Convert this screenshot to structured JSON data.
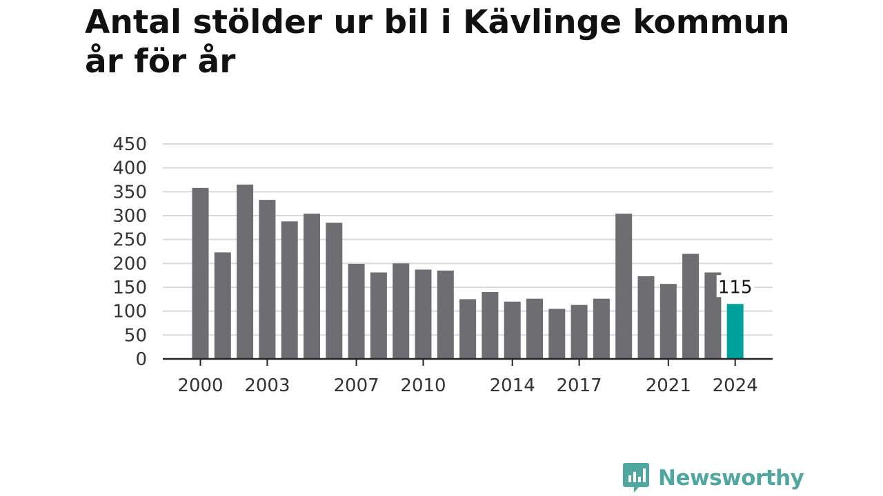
{
  "title": "Antal stölder ur bil i Kävlinge kommun år för år",
  "brand": {
    "name": "Newsworthy",
    "color": "#4fa7a0"
  },
  "colors": {
    "bar": "#6e6d72",
    "highlight": "#00a19a",
    "grid": "#d9d9d9",
    "axis": "#222222"
  },
  "chart_data": {
    "type": "bar",
    "categories": [
      "2000",
      "2001",
      "2002",
      "2003",
      "2004",
      "2005",
      "2006",
      "2007",
      "2008",
      "2009",
      "2010",
      "2011",
      "2012",
      "2013",
      "2014",
      "2015",
      "2016",
      "2017",
      "2018",
      "2019",
      "2020",
      "2021",
      "2022",
      "2023",
      "2024"
    ],
    "values": [
      358,
      223,
      365,
      333,
      288,
      304,
      285,
      199,
      181,
      200,
      187,
      185,
      125,
      140,
      120,
      126,
      105,
      113,
      126,
      304,
      173,
      157,
      220,
      181,
      115
    ],
    "x_tick_labels": [
      "2000",
      "2003",
      "2007",
      "2010",
      "2014",
      "2017",
      "2021",
      "2024"
    ],
    "y_ticks": [
      0,
      50,
      100,
      150,
      200,
      250,
      300,
      350,
      400,
      450
    ],
    "ylim": [
      0,
      450
    ],
    "highlight_category": "2024",
    "annotation": {
      "category": "2024",
      "text": "115"
    },
    "grid": true,
    "legend": "none",
    "xlabel": "",
    "ylabel": ""
  }
}
